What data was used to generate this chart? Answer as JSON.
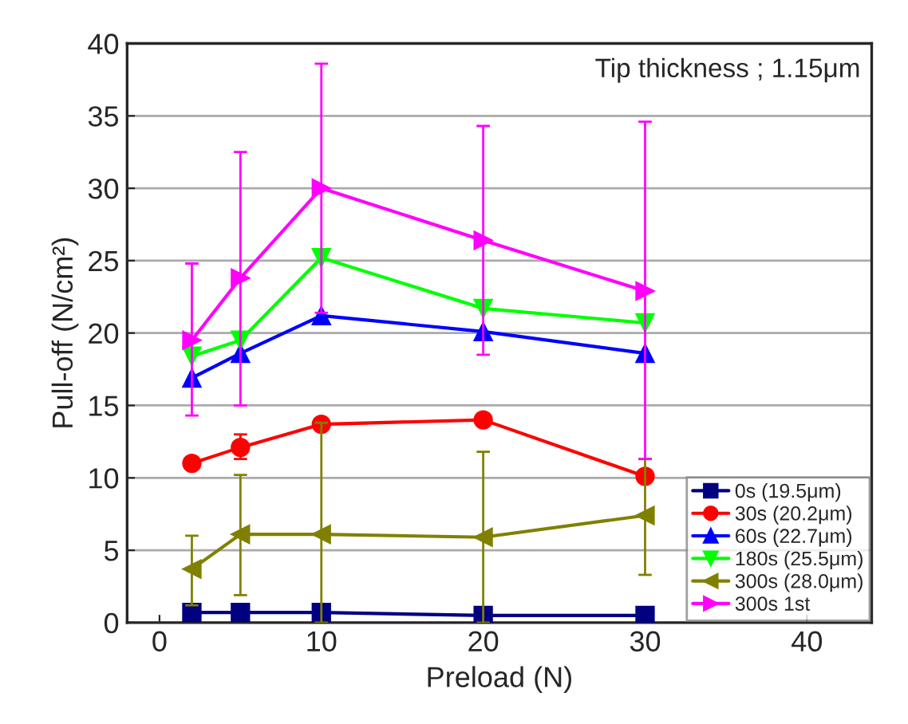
{
  "chart_data": {
    "type": "line",
    "xlabel": "Preload (N)",
    "ylabel": "Pull-off (N/cm²)",
    "annotations": [
      "Tip thickness ; 1.15μm"
    ],
    "x": [
      2,
      5,
      10,
      20,
      30
    ],
    "xlim": [
      -2,
      44
    ],
    "xticks": [
      0,
      10,
      20,
      30,
      40
    ],
    "ylim": [
      0,
      40
    ],
    "yticks": [
      0,
      5,
      10,
      15,
      20,
      25,
      30,
      35,
      40
    ],
    "grid": "y",
    "legend": "bottom right",
    "line_style": "solid",
    "series": [
      {
        "name": "0s (19.5μm)",
        "color": "#000080",
        "marker": "square",
        "values": [
          0.7,
          0.7,
          0.7,
          0.5,
          0.5
        ]
      },
      {
        "name": "30s (20.2μm)",
        "color": "#ff0000",
        "marker": "circle",
        "values": [
          11.0,
          12.1,
          13.7,
          14.0,
          10.1
        ],
        "errors": [
          null,
          [
            11.3,
            13.0
          ],
          null,
          null,
          null
        ]
      },
      {
        "name": "60s (22.7μm)",
        "color": "#0000ff",
        "marker": "triangle",
        "values": [
          16.9,
          18.6,
          21.2,
          20.1,
          18.6
        ]
      },
      {
        "name": "180s (25.5μm)",
        "color": "#00ff00",
        "marker": "triangle_down",
        "values": [
          18.4,
          19.5,
          25.2,
          21.7,
          20.7
        ]
      },
      {
        "name": "300s (28.0μm)",
        "color": "#808000",
        "marker": "triangle_left",
        "values": [
          3.7,
          6.1,
          6.1,
          5.9,
          7.4
        ],
        "errors": [
          [
            1.2,
            6.0
          ],
          [
            1.9,
            10.2
          ],
          [
            0,
            13.8
          ],
          [
            0,
            11.8
          ],
          [
            3.3,
            11.3
          ]
        ]
      },
      {
        "name": "300s 1st",
        "color": "#ff00ff",
        "marker": "triangle_right",
        "values": [
          19.5,
          23.8,
          30.0,
          26.4,
          22.9
        ],
        "errors": [
          [
            14.3,
            24.8
          ],
          [
            15.0,
            32.5
          ],
          [
            21.4,
            38.6
          ],
          [
            18.5,
            34.3
          ],
          [
            11.3,
            34.6
          ]
        ]
      }
    ]
  }
}
